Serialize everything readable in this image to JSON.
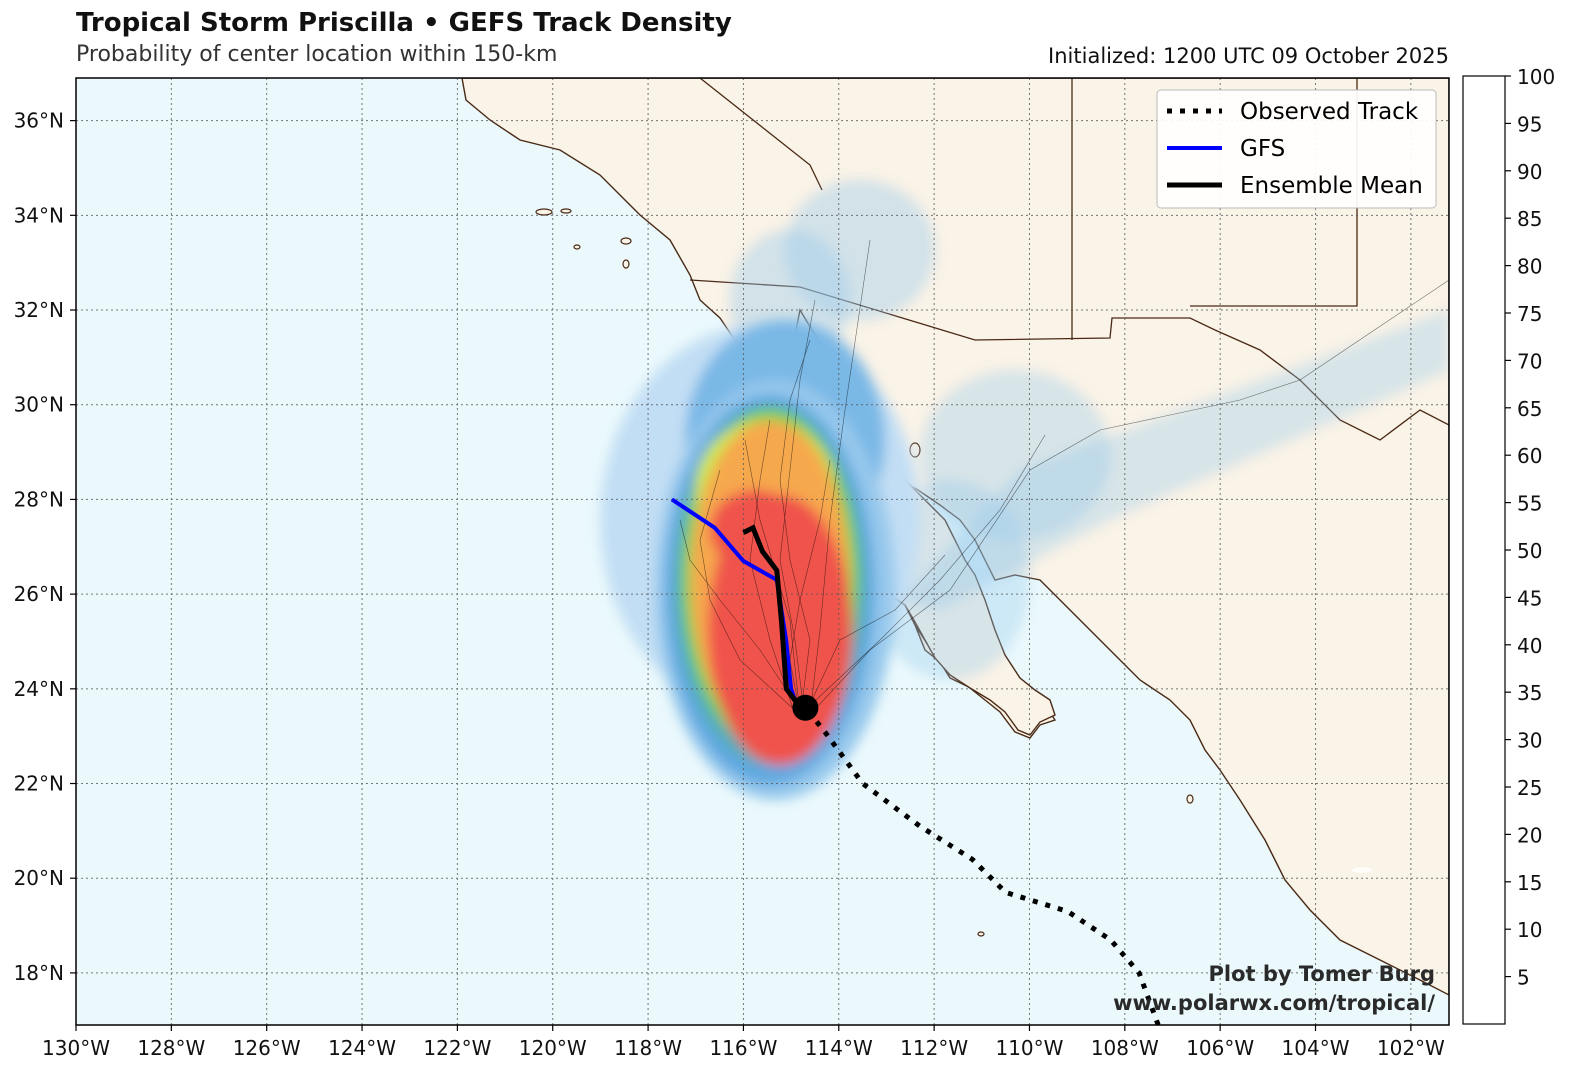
{
  "header": {
    "title": "Tropical Storm Priscilla • GEFS Track Density",
    "subtitle": "Probability of center location within 150-km",
    "initialized": "Initialized: 1200 UTC 09 October 2025"
  },
  "map": {
    "lon_range": [
      -130,
      -101.2
    ],
    "lat_range": [
      16.9,
      36.9
    ],
    "x_ticks": [
      "130°W",
      "128°W",
      "126°W",
      "124°W",
      "122°W",
      "120°W",
      "118°W",
      "116°W",
      "114°W",
      "112°W",
      "110°W",
      "108°W",
      "106°W",
      "104°W",
      "102°W"
    ],
    "y_ticks": [
      "18°N",
      "20°N",
      "22°N",
      "24°N",
      "26°N",
      "28°N",
      "30°N",
      "32°N",
      "34°N",
      "36°N"
    ],
    "gridlines": true,
    "colors": {
      "ocean": "#ebf9fc",
      "land": "#faf3e7",
      "coast": "#4a2a16"
    }
  },
  "legend": {
    "placement": "top-right",
    "items": [
      {
        "label": "Observed Track",
        "style": "dotted",
        "color": "#000000"
      },
      {
        "label": "GFS",
        "style": "solid",
        "color": "#0000ff"
      },
      {
        "label": "Ensemble Mean",
        "style": "solid",
        "color": "#000000"
      }
    ]
  },
  "colorbar": {
    "levels": [
      5,
      10,
      15,
      20,
      25,
      30,
      35,
      40,
      45,
      50,
      55,
      60,
      65,
      70,
      75,
      80,
      85,
      90,
      95,
      100
    ],
    "tick_labels": [
      "5",
      "10",
      "15",
      "20",
      "25",
      "30",
      "35",
      "40",
      "45",
      "50",
      "55",
      "60",
      "65",
      "70",
      "75",
      "80",
      "85",
      "90",
      "95",
      "100"
    ],
    "colors": [
      "#d3e8f8",
      "#c2def4",
      "#add4f0",
      "#96c8ec",
      "#7ab8e6",
      "#5ea8e0",
      "#4a9fdc",
      "#52aeb0",
      "#56bf80",
      "#5ccd4c",
      "#7dd64c",
      "#a7df4e",
      "#cde84f",
      "#f2f04d",
      "#f6de4f",
      "#f7c34e",
      "#f6a84e",
      "#f58d4e",
      "#f4704d",
      "#f0524b"
    ]
  },
  "tracks": {
    "observed": [
      [
        -107.3,
        16.9
      ],
      [
        -107.7,
        18.0
      ],
      [
        -108.3,
        18.7
      ],
      [
        -109.2,
        19.3
      ],
      [
        -110.5,
        19.7
      ],
      [
        -111.2,
        20.4
      ],
      [
        -112.3,
        21.1
      ],
      [
        -113.5,
        22.0
      ],
      [
        -114.3,
        23.1
      ],
      [
        -114.7,
        23.6
      ]
    ],
    "gfs": [
      [
        -117.5,
        28.0
      ],
      [
        -116.6,
        27.4
      ],
      [
        -116.0,
        26.7
      ],
      [
        -115.3,
        26.3
      ],
      [
        -115.1,
        25.0
      ],
      [
        -115.0,
        24.0
      ],
      [
        -114.8,
        23.4
      ]
    ],
    "ensemble_mean": [
      [
        -116.0,
        27.3
      ],
      [
        -115.8,
        27.4
      ],
      [
        -115.6,
        26.9
      ],
      [
        -115.3,
        26.5
      ],
      [
        -115.2,
        25.4
      ],
      [
        -115.1,
        24.0
      ],
      [
        -114.8,
        23.6
      ]
    ],
    "current_position": [
      -114.7,
      23.6
    ]
  },
  "credit": {
    "line1": "Plot by Tomer Burg",
    "line2": "www.polarwx.com/tropical/"
  }
}
